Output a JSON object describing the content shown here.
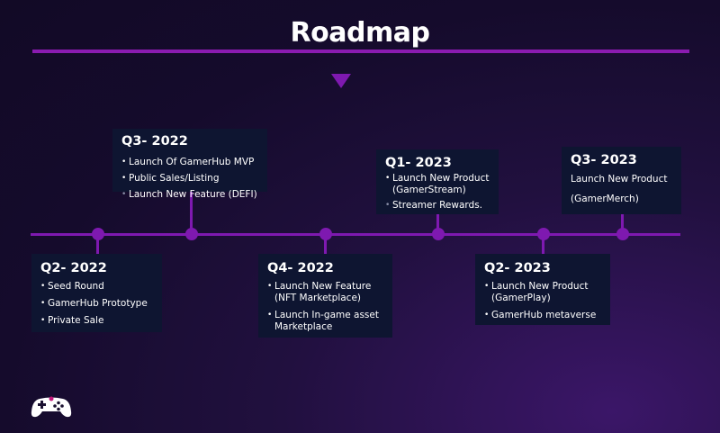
{
  "header": {
    "title": "Roadmap"
  },
  "milestones": [
    {
      "period": "Q2- 2022",
      "items": [
        "Seed Round",
        "GamerHub Prototype",
        "Private Sale"
      ]
    },
    {
      "period": "Q3- 2022",
      "items": [
        "Launch Of GamerHub MVP",
        "Public Sales/Listing",
        "Launch New Feature (DEFI)"
      ]
    },
    {
      "period": "Q4- 2022",
      "items": [
        "Launch New Feature (NFT Marketplace)",
        "Launch In-game asset Marketplace"
      ]
    },
    {
      "period": "Q1- 2023",
      "items": [
        "Launch New Product (GamerStream)",
        "Streamer Rewards."
      ]
    },
    {
      "period": "Q2- 2023",
      "items": [
        "Launch New Product (GamerPlay)",
        "GamerHub metaverse"
      ]
    },
    {
      "period": "Q3- 2023",
      "items": [
        "Launch New Product",
        "(GamerMerch)"
      ]
    }
  ],
  "colors": {
    "accent": "#7e19b0",
    "card": "#0e1531",
    "background": "#150b2c"
  },
  "logo": {
    "icon": "gamepad-icon"
  }
}
